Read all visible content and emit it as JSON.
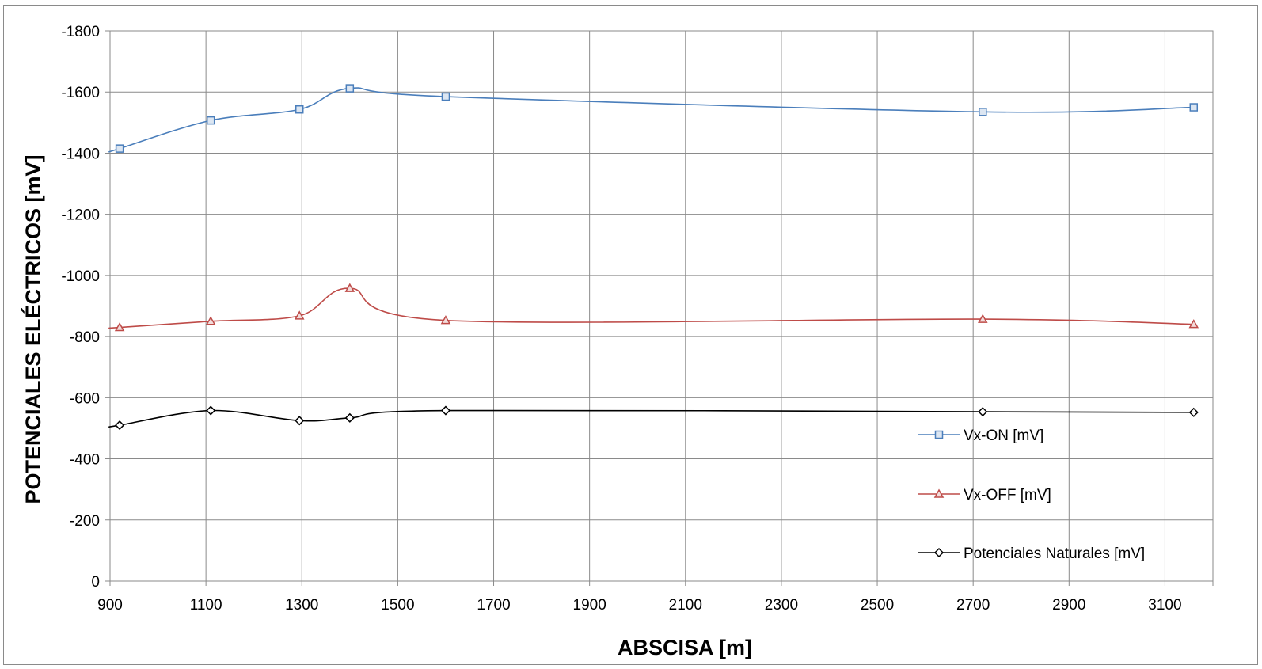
{
  "chart_data": {
    "type": "line",
    "smooth": true,
    "xlabel": "ABSCISA  [m]",
    "ylabel": "POTENCIALES ELÉCTRICOS [mV]",
    "xlim": [
      900,
      3200
    ],
    "ylim": [
      0,
      -1800
    ],
    "x_ticks": [
      900,
      1100,
      1300,
      1500,
      1700,
      1900,
      2100,
      2300,
      2500,
      2700,
      2900,
      3100
    ],
    "y_ticks": [
      -1800,
      -1600,
      -1400,
      -1200,
      -1000,
      -800,
      -600,
      -400,
      -200,
      0
    ],
    "grid": true,
    "legend_position": "right",
    "x": [
      920,
      1110,
      1295,
      1400,
      1600,
      2720,
      3160
    ],
    "series": [
      {
        "name": "Vx-ON [mV]",
        "marker": "square",
        "color": "#4a7ebb",
        "values": [
          -1415,
          -1507,
          -1543,
          -1612,
          -1585,
          -1535,
          -1550
        ]
      },
      {
        "name": "Vx-OFF [mV]",
        "marker": "triangle",
        "color": "#be4b48",
        "values": [
          -830,
          -850,
          -868,
          -958,
          -853,
          -857,
          -840
        ]
      },
      {
        "name": "Potenciales Naturales [mV]",
        "marker": "diamond",
        "color": "#000000",
        "values": [
          -510,
          -558,
          -525,
          -534,
          -558,
          -554,
          -552
        ]
      }
    ]
  }
}
